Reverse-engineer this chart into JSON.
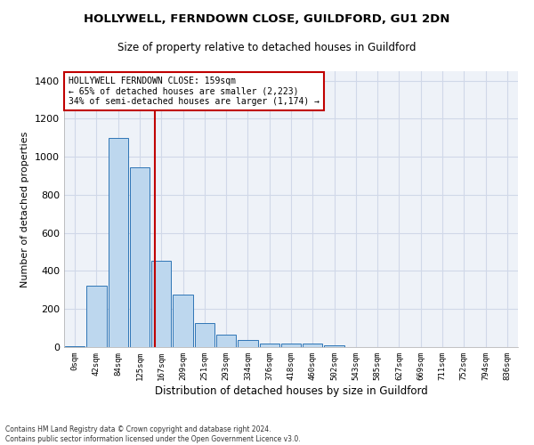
{
  "title1": "HOLLYWELL, FERNDOWN CLOSE, GUILDFORD, GU1 2DN",
  "title2": "Size of property relative to detached houses in Guildford",
  "xlabel": "Distribution of detached houses by size in Guildford",
  "ylabel": "Number of detached properties",
  "footnote": "Contains HM Land Registry data © Crown copyright and database right 2024.\nContains public sector information licensed under the Open Government Licence v3.0.",
  "bin_labels": [
    "0sqm",
    "42sqm",
    "84sqm",
    "125sqm",
    "167sqm",
    "209sqm",
    "251sqm",
    "293sqm",
    "334sqm",
    "376sqm",
    "418sqm",
    "460sqm",
    "502sqm",
    "543sqm",
    "585sqm",
    "627sqm",
    "669sqm",
    "711sqm",
    "752sqm",
    "794sqm",
    "836sqm"
  ],
  "bar_values": [
    5,
    325,
    1100,
    945,
    455,
    275,
    125,
    65,
    38,
    20,
    18,
    18,
    10,
    2,
    0,
    0,
    2,
    0,
    0,
    1,
    0
  ],
  "bar_color": "#bdd7ee",
  "bar_edge_color": "#2e75b6",
  "grid_color": "#d0d8e8",
  "bg_color": "#eef2f8",
  "vline_x_index": 3.72,
  "vline_color": "#c00000",
  "annotation_text": "HOLLYWELL FERNDOWN CLOSE: 159sqm\n← 65% of detached houses are smaller (2,223)\n34% of semi-detached houses are larger (1,174) →",
  "annotation_box_color": "#ffffff",
  "annotation_box_edge": "#c00000",
  "ylim": [
    0,
    1450
  ],
  "yticks": [
    0,
    200,
    400,
    600,
    800,
    1000,
    1200,
    1400
  ]
}
